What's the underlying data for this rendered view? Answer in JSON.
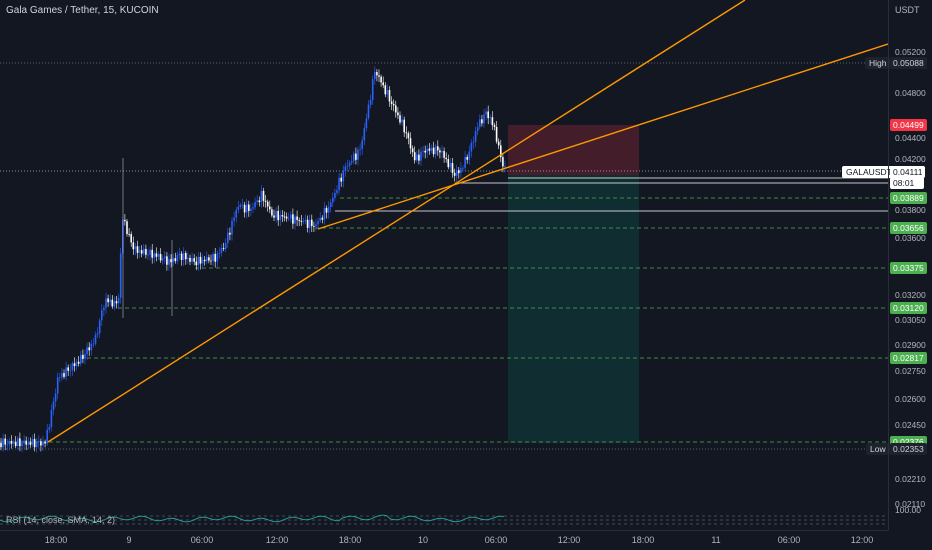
{
  "header": {
    "symbol_title": "Gala Games / Tether, 15, KUCOIN"
  },
  "price_scale": {
    "currency": "USDT",
    "ticks": [
      "0.05200",
      "0.04800",
      "0.04400",
      "0.04200",
      "0.03800",
      "0.03600",
      "0.03200",
      "0.03050",
      "0.02900",
      "0.02750",
      "0.02600",
      "0.02450",
      "0.02210",
      "0.02110"
    ],
    "labels": {
      "high": "0.05088",
      "stop": "0.04499",
      "current": "0.04111",
      "countdown": "08:01",
      "level_1": "0.03889",
      "level_2": "0.03656",
      "level_3": "0.03375",
      "level_4": "0.03120",
      "level_5": "0.02817",
      "level_6": "0.02376",
      "low": "0.02353"
    },
    "rsi_tick": "100.00"
  },
  "side_labels": {
    "high": "High",
    "symbol": "GALAUSDT",
    "low": "Low"
  },
  "time_scale": {
    "ticks": [
      "18:00",
      "9",
      "06:00",
      "12:00",
      "18:00",
      "10",
      "06:00",
      "12:00",
      "18:00",
      "11",
      "06:00",
      "12:00"
    ]
  },
  "indicator": {
    "rsi_label": "RSI (14, close, SMA, 14, 2)"
  },
  "colors": {
    "background": "#131722",
    "candle_up": "#2962ff",
    "candle_down": "#ffffff",
    "trendline": "#ff9800",
    "level_green": "#4caf50",
    "stop_red": "#f23645",
    "rsi_line": "#26a69a"
  }
}
